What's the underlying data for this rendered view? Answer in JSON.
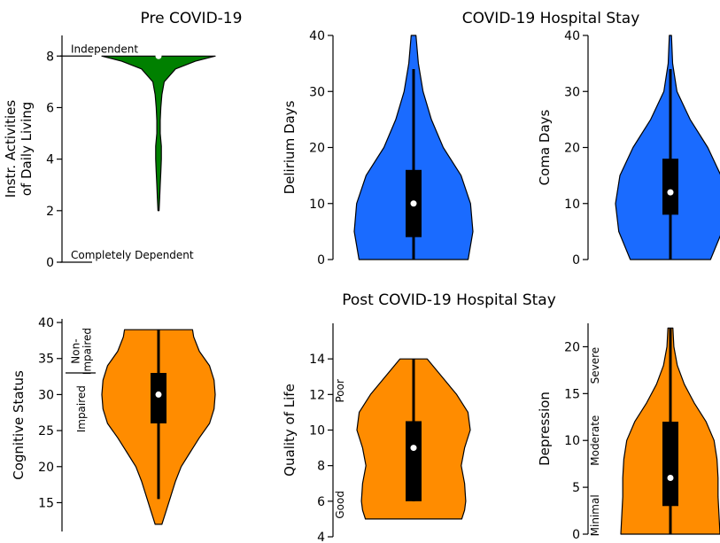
{
  "titles": {
    "pre": "Pre COVID-19",
    "during": "COVID-19 Hospital Stay",
    "post": "Post COVID-19 Hospital Stay"
  },
  "chart_data": [
    {
      "type": "violin",
      "ylabel": "Instr. Activities\nof Daily Living",
      "ylim": [
        0,
        8.8
      ],
      "yticks": [
        0,
        2,
        4,
        6,
        8
      ],
      "color": "#008000",
      "median": 8,
      "q1": 8,
      "q3": 8,
      "whisker_low": 8,
      "whisker_high": 8,
      "violin": [
        [
          2,
          0.01
        ],
        [
          2.5,
          0.02
        ],
        [
          3,
          0.03
        ],
        [
          3.5,
          0.04
        ],
        [
          4,
          0.05
        ],
        [
          4.5,
          0.05
        ],
        [
          5,
          0.03
        ],
        [
          5.5,
          0.03
        ],
        [
          6,
          0.04
        ],
        [
          6.5,
          0.06
        ],
        [
          7,
          0.1
        ],
        [
          7.5,
          0.3
        ],
        [
          7.8,
          0.65
        ],
        [
          8,
          1.0
        ]
      ],
      "annotations": [
        {
          "text": "Independent",
          "y": 8
        },
        {
          "text": "Completely Dependent",
          "y": 0
        }
      ]
    },
    {
      "type": "violin",
      "ylabel": "Delirium Days",
      "ylim": [
        0,
        40
      ],
      "yticks": [
        0,
        10,
        20,
        30,
        40
      ],
      "color": "#1a6bff",
      "median": 10,
      "q1": 4,
      "q3": 16,
      "whisker_low": 0,
      "whisker_high": 34,
      "violin": [
        [
          0,
          0.92
        ],
        [
          5,
          1.0
        ],
        [
          10,
          0.96
        ],
        [
          15,
          0.8
        ],
        [
          20,
          0.5
        ],
        [
          25,
          0.3
        ],
        [
          30,
          0.16
        ],
        [
          35,
          0.08
        ],
        [
          40,
          0.04
        ]
      ],
      "annotations": []
    },
    {
      "type": "violin",
      "ylabel": "Coma Days",
      "ylim": [
        0,
        40
      ],
      "yticks": [
        0,
        10,
        20,
        30,
        40
      ],
      "color": "#1a6bff",
      "median": 12,
      "q1": 8,
      "q3": 18,
      "whisker_low": 0,
      "whisker_high": 34,
      "violin": [
        [
          0,
          0.73
        ],
        [
          5,
          0.94
        ],
        [
          10,
          1.0
        ],
        [
          15,
          0.92
        ],
        [
          20,
          0.68
        ],
        [
          25,
          0.36
        ],
        [
          30,
          0.12
        ],
        [
          35,
          0.04
        ],
        [
          40,
          0.02
        ]
      ],
      "annotations": []
    },
    {
      "type": "violin",
      "ylabel": "Cognitive Status",
      "ylim": [
        11,
        40.5
      ],
      "yticks": [
        15,
        20,
        25,
        30,
        35,
        40
      ],
      "color": "#ff8c00",
      "median": 30,
      "q1": 26,
      "q3": 33,
      "whisker_low": 15.5,
      "whisker_high": 39,
      "violin": [
        [
          12,
          0.06
        ],
        [
          14,
          0.14
        ],
        [
          16,
          0.22
        ],
        [
          18,
          0.3
        ],
        [
          20,
          0.4
        ],
        [
          22,
          0.56
        ],
        [
          24,
          0.72
        ],
        [
          26,
          0.9
        ],
        [
          28,
          0.98
        ],
        [
          30,
          1.0
        ],
        [
          32,
          0.98
        ],
        [
          34,
          0.9
        ],
        [
          36,
          0.72
        ],
        [
          38,
          0.62
        ],
        [
          39,
          0.6
        ]
      ],
      "annotations": [
        {
          "text": "Non-\nImpaired",
          "y": 36
        },
        {
          "text": "Impaired",
          "y": 28
        }
      ],
      "cutoff": 33
    },
    {
      "type": "violin",
      "ylabel": "Quality of Life",
      "ylim": [
        4,
        16
      ],
      "yticks": [
        4,
        6,
        8,
        10,
        12,
        14
      ],
      "color": "#ff8c00",
      "median": 9,
      "q1": 6,
      "q3": 10.5,
      "whisker_low": 6,
      "whisker_high": 14,
      "violin": [
        [
          5,
          0.85
        ],
        [
          5.5,
          0.9
        ],
        [
          6,
          0.92
        ],
        [
          7,
          0.9
        ],
        [
          8,
          0.84
        ],
        [
          9,
          0.9
        ],
        [
          10,
          1.0
        ],
        [
          11,
          0.96
        ],
        [
          12,
          0.76
        ],
        [
          13,
          0.5
        ],
        [
          14,
          0.24
        ]
      ],
      "annotations": [
        {
          "text": "Poor",
          "y": 12.2
        },
        {
          "text": "Good",
          "y": 5.8
        }
      ]
    },
    {
      "type": "violin",
      "ylabel": "Depression",
      "ylim": [
        0,
        22.5
      ],
      "yticks": [
        0,
        5,
        10,
        15,
        20
      ],
      "color": "#ff8c00",
      "median": 6,
      "q1": 3,
      "q3": 12,
      "whisker_low": 0,
      "whisker_high": 22,
      "violin": [
        [
          0,
          1.0
        ],
        [
          2,
          0.98
        ],
        [
          4,
          0.96
        ],
        [
          6,
          0.96
        ],
        [
          8,
          0.94
        ],
        [
          10,
          0.88
        ],
        [
          12,
          0.72
        ],
        [
          14,
          0.48
        ],
        [
          16,
          0.28
        ],
        [
          18,
          0.14
        ],
        [
          20,
          0.07
        ],
        [
          22,
          0.05
        ]
      ],
      "annotations": [
        {
          "text": "Severe",
          "y": 18
        },
        {
          "text": "Moderate",
          "y": 10
        },
        {
          "text": "Minimal",
          "y": 2
        }
      ]
    }
  ]
}
